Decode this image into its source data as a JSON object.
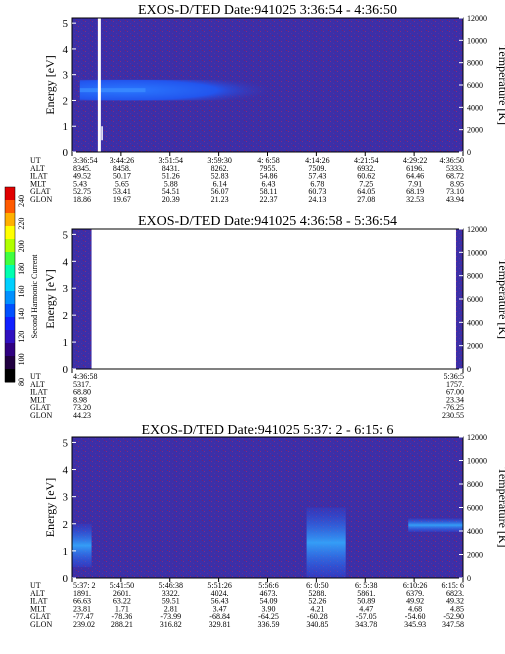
{
  "colorbar": {
    "label": "Second Harmonic Current",
    "ticks": [
      "240",
      "220",
      "200",
      "180",
      "160",
      "140",
      "120",
      "100",
      "80"
    ]
  },
  "chart_data": [
    {
      "type": "heatmap",
      "title": "EXOS-D/TED   Date:941025  3:36:54 - 4:36:50",
      "ylabel": "Energy [eV]",
      "ylabel_right": "Temperature [K]",
      "ylim": [
        0,
        5.2
      ],
      "yticks": [
        "0",
        "1",
        "2",
        "3",
        "4",
        "5"
      ],
      "y2lim": [
        0,
        12000
      ],
      "y2ticks": [
        "0",
        "2000",
        "4000",
        "6000",
        "8000",
        "10000",
        "12000"
      ],
      "background_color": "#3b2fa8",
      "band_color": "#1e5bff",
      "band": {
        "time_start": 0.02,
        "time_end": 0.5,
        "energy_low": 2.0,
        "energy_high": 2.8,
        "peak_energy": 2.4
      },
      "gaps": [
        0.07
      ],
      "orbit": {
        "labels": [
          "UT",
          "ALT",
          "ILAT",
          "MLT",
          "GLAT",
          "GLON"
        ],
        "columns": [
          [
            "3:36:54",
            "8345.",
            "49.52",
            "5.43",
            "52.75",
            "18.86"
          ],
          [
            "3:44:26",
            "8458.",
            "50.17",
            "5.65",
            "53.41",
            "19.67"
          ],
          [
            "3:51:54",
            "8431.",
            "51.26",
            "5.88",
            "54.51",
            "20.39"
          ],
          [
            "3:59:30",
            "8262.",
            "52.83",
            "6.14",
            "56.07",
            "21.23"
          ],
          [
            "4: 6:58",
            "7955.",
            "54.86",
            "6.43",
            "58.11",
            "22.37"
          ],
          [
            "4:14:26",
            "7509.",
            "57.43",
            "6.78",
            "60.73",
            "24.13"
          ],
          [
            "4:21:54",
            "6932.",
            "60.62",
            "7.25",
            "64.05",
            "27.08"
          ],
          [
            "4:29:22",
            "6196.",
            "64.46",
            "7.91",
            "68.19",
            "32.53"
          ],
          [
            "4:36:50",
            "5333.",
            "68.72",
            "8.95",
            "73.10",
            "43.94"
          ]
        ]
      }
    },
    {
      "type": "heatmap",
      "title": "EXOS-D/TED   Date:941025  4:36:58 - 5:36:54",
      "ylabel": "Energy [eV]",
      "ylabel_right": "Temperature [K]",
      "ylim": [
        0,
        5.2
      ],
      "yticks": [
        "0",
        "1",
        "2",
        "3",
        "4",
        "5"
      ],
      "y2lim": [
        0,
        12000
      ],
      "y2ticks": [
        "0",
        "2000",
        "4000",
        "6000",
        "8000",
        "10000",
        "12000"
      ],
      "background_color": "#3b2fa8",
      "data_intervals": [
        [
          0.0,
          0.05
        ],
        [
          0.982,
          1.0
        ]
      ],
      "orbit": {
        "labels": [
          "UT",
          "ALT",
          "ILAT",
          "MLT",
          "GLAT",
          "GLON"
        ],
        "columns": [
          [
            "4:36:58",
            "5317.",
            "68.80",
            "8.98",
            "73.20",
            "44.23"
          ],
          [
            "5:36:5",
            "1757.",
            "67.00",
            "23.34",
            "-76.25",
            "230.55"
          ]
        ]
      }
    },
    {
      "type": "heatmap",
      "title": "EXOS-D/TED   Date:941025  5:37: 2 - 6:15: 6",
      "ylabel": "Energy [eV]",
      "ylabel_right": "Temperature [K]",
      "ylim": [
        0,
        5.2
      ],
      "yticks": [
        "0",
        "1",
        "2",
        "3",
        "4",
        "5"
      ],
      "y2lim": [
        0,
        12000
      ],
      "y2ticks": [
        "0",
        "2000",
        "4000",
        "6000",
        "8000",
        "10000",
        "12000"
      ],
      "background_color": "#3b2fa8",
      "band_color": "#1e5bff",
      "bursts": [
        {
          "time_start": 0.0,
          "time_end": 0.05,
          "energy_low": 0.4,
          "energy_high": 2.0
        },
        {
          "time_start": 0.6,
          "time_end": 0.7,
          "energy_low": 0.0,
          "energy_high": 2.6
        },
        {
          "time_start": 0.86,
          "time_end": 1.0,
          "energy_low": 1.7,
          "energy_high": 2.2
        }
      ],
      "orbit": {
        "labels": [
          "UT",
          "ALT",
          "ILAT",
          "MLT",
          "GLAT",
          "GLON"
        ],
        "columns": [
          [
            "5:37: 2",
            "1891.",
            "66.63",
            "23.81",
            "-77.47",
            "239.02"
          ],
          [
            "5:41:50",
            "2601.",
            "63.22",
            "1.71",
            "-78.36",
            "288.21"
          ],
          [
            "5:46:38",
            "3322.",
            "59.51",
            "2.81",
            "-73.99",
            "316.82"
          ],
          [
            "5:51:26",
            "4024.",
            "56.43",
            "3.47",
            "-68.84",
            "329.81"
          ],
          [
            "5:56:6",
            "4673.",
            "54.09",
            "3.90",
            "-64.25",
            "336.59"
          ],
          [
            "6: 0:50",
            "5288.",
            "52.26",
            "4.21",
            "-60.28",
            "340.85"
          ],
          [
            "6: 5:38",
            "5861.",
            "50.89",
            "4.47",
            "-57.05",
            "343.78"
          ],
          [
            "6:10:26",
            "6379.",
            "49.92",
            "4.68",
            "-54.60",
            "345.93"
          ],
          [
            "6:15: 6",
            "6823.",
            "49.32",
            "4.85",
            "-52.90",
            "347.58"
          ]
        ]
      }
    }
  ]
}
